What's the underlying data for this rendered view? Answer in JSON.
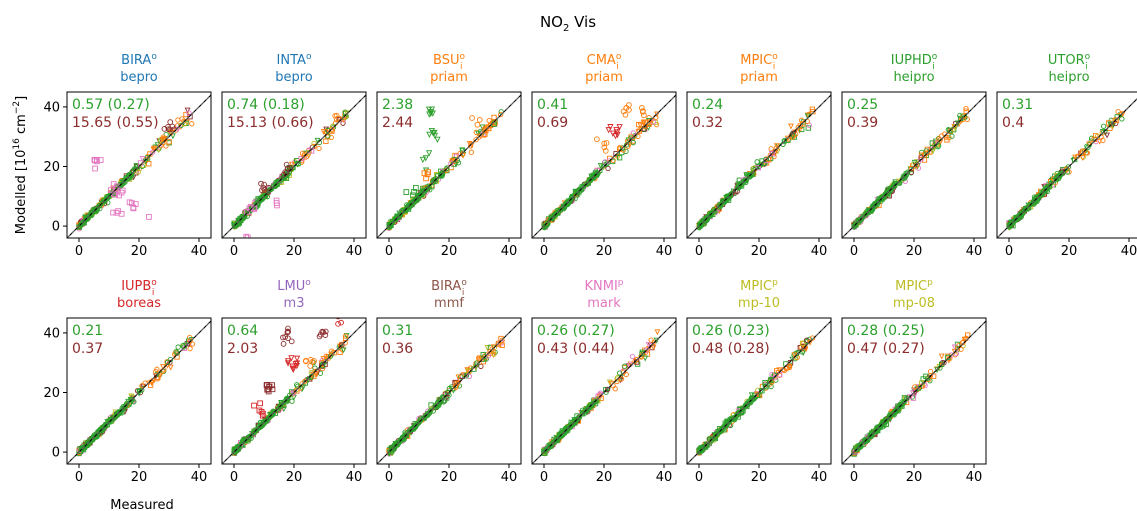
{
  "figure": {
    "title_main": "NO",
    "title_sub": "2",
    "title_rest": " Vis",
    "ylabel": "Modelled [10",
    "ylabel_sup": "16",
    "ylabel_mid": " cm",
    "ylabel_sup2": "−2",
    "ylabel_end": "]",
    "xlabel": "Measured"
  },
  "colors": {
    "green": "#2ca02c",
    "brown": "#8c2d2d",
    "orange": "#ff7f0e",
    "red": "#d62728",
    "blue": "#1f77b4",
    "purple": "#9467bd",
    "pink": "#e377c2",
    "olive": "#bcbd22",
    "maroon": "#8c564b"
  },
  "chart_data": [
    {
      "type": "scatter",
      "row": 0,
      "col": 0,
      "name": "BIRA",
      "sup": "o",
      "sub": "",
      "retrieval": "bepro",
      "name_color": "#1f77b4",
      "stat1": "0.57 (0.27)",
      "stat2": "15.65 (0.55)",
      "outliers": "bira",
      "xlim": [
        -4,
        44
      ],
      "ylim": [
        -4,
        45
      ],
      "xticks": [
        0,
        20,
        40
      ],
      "yticks": [
        0,
        20,
        40
      ]
    },
    {
      "type": "scatter",
      "row": 0,
      "col": 1,
      "name": "INTA",
      "sup": "o",
      "sub": "",
      "retrieval": "bepro",
      "name_color": "#1f77b4",
      "stat1": "0.74 (0.18)",
      "stat2": "15.13 (0.66)",
      "outliers": "inta",
      "xlim": [
        -4,
        44
      ],
      "ylim": [
        -4,
        45
      ],
      "xticks": [
        0,
        20,
        40
      ],
      "yticks": [
        0,
        20,
        40
      ]
    },
    {
      "type": "scatter",
      "row": 0,
      "col": 2,
      "name": "BSU",
      "sup": "o",
      "sub": "i",
      "retrieval": "priam",
      "name_color": "#ff7f0e",
      "stat1": "2.38",
      "stat2": "2.44",
      "outliers": "bsu",
      "xlim": [
        -4,
        44
      ],
      "ylim": [
        -4,
        45
      ],
      "xticks": [
        0,
        20,
        40
      ],
      "yticks": [
        0,
        20,
        40
      ]
    },
    {
      "type": "scatter",
      "row": 0,
      "col": 3,
      "name": "CMA",
      "sup": "o",
      "sub": "i",
      "retrieval": "priam",
      "name_color": "#ff7f0e",
      "stat1": "0.41",
      "stat2": "0.69",
      "outliers": "cma",
      "xlim": [
        -4,
        44
      ],
      "ylim": [
        -4,
        45
      ],
      "xticks": [
        0,
        20,
        40
      ],
      "yticks": [
        0,
        20,
        40
      ]
    },
    {
      "type": "scatter",
      "row": 0,
      "col": 4,
      "name": "MPIC",
      "sup": "o",
      "sub": "i",
      "retrieval": "priam",
      "name_color": "#ff7f0e",
      "stat1": "0.24",
      "stat2": "0.32",
      "outliers": "none",
      "xlim": [
        -4,
        44
      ],
      "ylim": [
        -4,
        45
      ],
      "xticks": [
        0,
        20,
        40
      ],
      "yticks": [
        0,
        20,
        40
      ]
    },
    {
      "type": "scatter",
      "row": 0,
      "col": 5,
      "name": "IUPHD",
      "sup": "o",
      "sub": "i",
      "retrieval": "heipro",
      "name_color": "#2ca02c",
      "stat1": "0.25",
      "stat2": "0.39",
      "outliers": "none",
      "xlim": [
        -4,
        44
      ],
      "ylim": [
        -4,
        45
      ],
      "xticks": [
        0,
        20,
        40
      ],
      "yticks": [
        0,
        20,
        40
      ]
    },
    {
      "type": "scatter",
      "row": 0,
      "col": 6,
      "name": "UTOR",
      "sup": "o",
      "sub": "i",
      "retrieval": "heipro",
      "name_color": "#2ca02c",
      "stat1": "0.31",
      "stat2": "0.4",
      "outliers": "none",
      "xlim": [
        -4,
        44
      ],
      "ylim": [
        -4,
        45
      ],
      "xticks": [
        0,
        20,
        40
      ],
      "yticks": [
        0,
        20,
        40
      ]
    },
    {
      "type": "scatter",
      "row": 1,
      "col": 0,
      "name": "IUPB",
      "sup": "o",
      "sub": "i",
      "retrieval": "boreas",
      "name_color": "#d62728",
      "stat1": "0.21",
      "stat2": "0.37",
      "outliers": "none",
      "xlim": [
        -4,
        44
      ],
      "ylim": [
        -4,
        45
      ],
      "xticks": [
        0,
        20,
        40
      ],
      "yticks": [
        0,
        20,
        40
      ]
    },
    {
      "type": "scatter",
      "row": 1,
      "col": 1,
      "name": "LMU",
      "sup": "o",
      "sub": "",
      "retrieval": "m3",
      "name_color": "#9467bd",
      "stat1": "0.64",
      "stat2": "2.03",
      "outliers": "lmu",
      "xlim": [
        -4,
        44
      ],
      "ylim": [
        -4,
        45
      ],
      "xticks": [
        0,
        20,
        40
      ],
      "yticks": [
        0,
        20,
        40
      ]
    },
    {
      "type": "scatter",
      "row": 1,
      "col": 2,
      "name": "BIRA",
      "sup": "o",
      "sub": "i",
      "retrieval": "mmf",
      "name_color": "#8c564b",
      "stat1": "0.31",
      "stat2": "0.36",
      "outliers": "none",
      "xlim": [
        -4,
        44
      ],
      "ylim": [
        -4,
        45
      ],
      "xticks": [
        0,
        20,
        40
      ],
      "yticks": [
        0,
        20,
        40
      ]
    },
    {
      "type": "scatter",
      "row": 1,
      "col": 3,
      "name": "KNMI",
      "sup": "p",
      "sub": "",
      "retrieval": "mark",
      "name_color": "#e377c2",
      "stat1": "0.26 (0.27)",
      "stat2": "0.43 (0.44)",
      "outliers": "none",
      "xlim": [
        -4,
        44
      ],
      "ylim": [
        -4,
        45
      ],
      "xticks": [
        0,
        20,
        40
      ],
      "yticks": [
        0,
        20,
        40
      ]
    },
    {
      "type": "scatter",
      "row": 1,
      "col": 4,
      "name": "MPIC",
      "sup": "p",
      "sub": "",
      "retrieval": "mp-10",
      "name_color": "#bcbd22",
      "stat1": "0.26 (0.23)",
      "stat2": "0.48 (0.28)",
      "outliers": "none",
      "xlim": [
        -4,
        44
      ],
      "ylim": [
        -4,
        45
      ],
      "xticks": [
        0,
        20,
        40
      ],
      "yticks": [
        0,
        20,
        40
      ]
    },
    {
      "type": "scatter",
      "row": 1,
      "col": 5,
      "name": "MPIC",
      "sup": "p",
      "sub": "",
      "retrieval": "mp-08",
      "name_color": "#bcbd22",
      "stat1": "0.28 (0.25)",
      "stat2": "0.47 (0.27)",
      "outliers": "none",
      "xlim": [
        -4,
        44
      ],
      "ylim": [
        -4,
        45
      ],
      "xticks": [
        0,
        20,
        40
      ],
      "yticks": [
        0,
        20,
        40
      ]
    }
  ]
}
